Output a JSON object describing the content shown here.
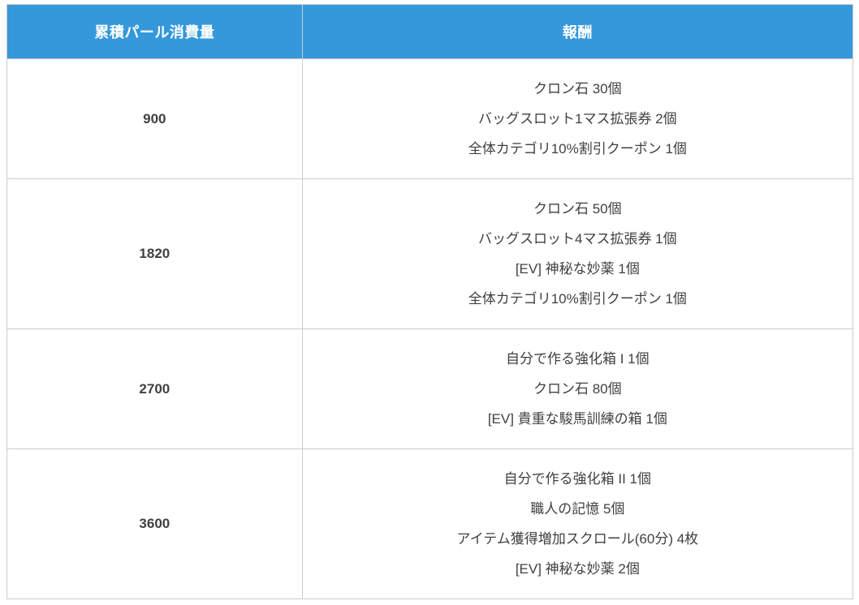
{
  "page": {
    "background": "#ffffff"
  },
  "table": {
    "headers": [
      {
        "id": "pearl-consumption",
        "label": "累積パール消費量"
      },
      {
        "id": "reward",
        "label": "報酬"
      }
    ],
    "rows": [
      {
        "pearls": "900",
        "rewards": [
          "クロン石 30個",
          "バッグスロット1マス拡張券 2個",
          "全体カテゴリ10%割引クーポン 1個"
        ]
      },
      {
        "pearls": "1820",
        "rewards": [
          "クロン石 50個",
          "バッグスロット4マス拡張券 1個",
          "[EV] 神秘な妙薬 1個",
          "全体カテゴリ10%割引クーポン 1個"
        ]
      },
      {
        "pearls": "2700",
        "rewards": [
          "自分で作る強化箱 I 1個",
          "クロン石 80個",
          "[EV] 貴重な駿馬訓練の箱 1個"
        ]
      },
      {
        "pearls": "3600",
        "rewards": [
          "自分で作る強化箱 II 1個",
          "職人の記憶 5個",
          "アイテム獲得増加スクロール(60分) 4枚",
          "[EV] 神秘な妙薬 2個"
        ]
      }
    ],
    "colors": {
      "header_bg": "#3598db",
      "header_text": "#ffffff",
      "body_text": "#404040",
      "border": "#cccccc"
    }
  }
}
